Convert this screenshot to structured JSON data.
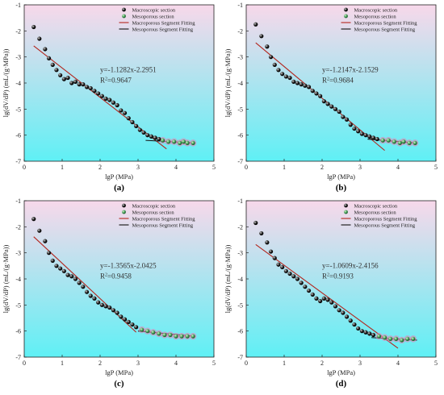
{
  "legend": {
    "macroscopic_label": "Macroscopic section",
    "mesoporous_label": "Mesoporous section",
    "macro_fit_label": "Macroporous Segment Fitting",
    "meso_fit_label": "Mesoporous Segment Fitting"
  },
  "colors": {
    "macro_fit_line": "#b3261e",
    "meso_fit_line": "#111111",
    "macro_point": "#1a1a1a",
    "meso_point": "#3f9a56",
    "halo": "#f07ab4",
    "bg_top": "#f8d8ea",
    "bg_bottom": "#5ff0f5"
  },
  "chart_data": [
    {
      "type": "scatter",
      "panel_label": "(a)",
      "xlabel": "lgP (MPa)",
      "ylabel": "lg(dV/dP) (mL/(g·MPa))",
      "xlim": [
        0,
        5
      ],
      "ylim": [
        -7,
        -1
      ],
      "xticks": [
        0,
        1,
        2,
        3,
        4,
        5
      ],
      "yticks": [
        -7,
        -6,
        -5,
        -4,
        -3,
        -2,
        -1
      ],
      "fit_equation": "y=-1.1282x-2.2951",
      "r2_value": "=0.9647",
      "macro_fit": {
        "slope": -1.1282,
        "intercept": -2.2951,
        "x_range": [
          0.25,
          3.75
        ]
      },
      "meso_fit": {
        "x_range": [
          3.2,
          4.5
        ],
        "y_range": [
          -6.2,
          -6.3
        ]
      },
      "macro_points": [
        [
          0.25,
          -1.85
        ],
        [
          0.4,
          -2.3
        ],
        [
          0.55,
          -2.7
        ],
        [
          0.65,
          -3.05
        ],
        [
          0.75,
          -3.3
        ],
        [
          0.85,
          -3.5
        ],
        [
          0.95,
          -3.7
        ],
        [
          1.05,
          -3.85
        ],
        [
          1.15,
          -3.8
        ],
        [
          1.25,
          -4.0
        ],
        [
          1.35,
          -3.95
        ],
        [
          1.45,
          -4.05
        ],
        [
          1.55,
          -4.05
        ],
        [
          1.65,
          -4.15
        ],
        [
          1.75,
          -4.2
        ],
        [
          1.85,
          -4.3
        ],
        [
          1.95,
          -4.4
        ],
        [
          2.05,
          -4.5
        ],
        [
          2.15,
          -4.6
        ],
        [
          2.25,
          -4.65
        ],
        [
          2.35,
          -4.75
        ],
        [
          2.45,
          -4.85
        ],
        [
          2.55,
          -5.05
        ],
        [
          2.65,
          -5.15
        ],
        [
          2.75,
          -5.35
        ],
        [
          2.85,
          -5.5
        ],
        [
          2.95,
          -5.65
        ],
        [
          3.05,
          -5.8
        ],
        [
          3.15,
          -5.9
        ],
        [
          3.25,
          -6.0
        ],
        [
          3.35,
          -6.05
        ],
        [
          3.45,
          -6.1
        ],
        [
          3.55,
          -6.15
        ]
      ],
      "meso_points": [
        [
          3.65,
          -6.2
        ],
        [
          3.8,
          -6.25
        ],
        [
          3.95,
          -6.25
        ],
        [
          4.1,
          -6.3
        ],
        [
          4.2,
          -6.25
        ],
        [
          4.3,
          -6.3
        ],
        [
          4.45,
          -6.3
        ]
      ]
    },
    {
      "type": "scatter",
      "panel_label": "(b)",
      "xlabel": "lgP (MPa)",
      "ylabel": "lg(dV/dP) (mL/(g·MPa))",
      "xlim": [
        0,
        5
      ],
      "ylim": [
        -7,
        -1
      ],
      "xticks": [
        0,
        1,
        2,
        3,
        4,
        5
      ],
      "yticks": [
        -7,
        -6,
        -5,
        -4,
        -3,
        -2,
        -1
      ],
      "fit_equation": "y=-1.2147x-2.1529",
      "r2_value": "=0.9684",
      "macro_fit": {
        "slope": -1.2147,
        "intercept": -2.1529,
        "x_range": [
          0.25,
          3.65
        ]
      },
      "meso_fit": {
        "x_range": [
          3.2,
          4.5
        ],
        "y_range": [
          -6.15,
          -6.3
        ]
      },
      "macro_points": [
        [
          0.25,
          -1.75
        ],
        [
          0.4,
          -2.2
        ],
        [
          0.55,
          -2.6
        ],
        [
          0.65,
          -3.0
        ],
        [
          0.75,
          -3.3
        ],
        [
          0.85,
          -3.5
        ],
        [
          0.95,
          -3.65
        ],
        [
          1.05,
          -3.75
        ],
        [
          1.15,
          -3.8
        ],
        [
          1.25,
          -3.95
        ],
        [
          1.35,
          -4.0
        ],
        [
          1.45,
          -4.05
        ],
        [
          1.55,
          -4.1
        ],
        [
          1.65,
          -4.15
        ],
        [
          1.75,
          -4.3
        ],
        [
          1.85,
          -4.4
        ],
        [
          1.95,
          -4.5
        ],
        [
          2.05,
          -4.7
        ],
        [
          2.15,
          -4.8
        ],
        [
          2.25,
          -4.9
        ],
        [
          2.35,
          -5.0
        ],
        [
          2.45,
          -5.1
        ],
        [
          2.55,
          -5.3
        ],
        [
          2.65,
          -5.4
        ],
        [
          2.75,
          -5.6
        ],
        [
          2.85,
          -5.75
        ],
        [
          2.95,
          -5.85
        ],
        [
          3.05,
          -5.95
        ],
        [
          3.15,
          -6.0
        ],
        [
          3.25,
          -6.05
        ],
        [
          3.35,
          -6.1
        ],
        [
          3.45,
          -6.15
        ]
      ],
      "meso_points": [
        [
          3.6,
          -6.2
        ],
        [
          3.75,
          -6.2
        ],
        [
          3.9,
          -6.25
        ],
        [
          4.05,
          -6.3
        ],
        [
          4.15,
          -6.25
        ],
        [
          4.3,
          -6.3
        ],
        [
          4.45,
          -6.3
        ]
      ]
    },
    {
      "type": "scatter",
      "panel_label": "(c)",
      "xlabel": "lgP (MPa)",
      "ylabel": "lg(dV/dP) (mL/(g·MPa))",
      "xlim": [
        0,
        5
      ],
      "ylim": [
        -7,
        -1
      ],
      "xticks": [
        0,
        1,
        2,
        3,
        4,
        5
      ],
      "yticks": [
        -7,
        -6,
        -5,
        -4,
        -3,
        -2,
        -1
      ],
      "fit_equation": "y=-1.3565x-2.0425",
      "r2_value": "=0.9458",
      "macro_fit": {
        "slope": -1.3565,
        "intercept": -2.0425,
        "x_range": [
          0.25,
          2.95
        ]
      },
      "meso_fit": {
        "x_range": [
          3.0,
          4.5
        ],
        "y_range": [
          -6.0,
          -6.2
        ]
      },
      "macro_points": [
        [
          0.25,
          -1.7
        ],
        [
          0.4,
          -2.15
        ],
        [
          0.55,
          -2.55
        ],
        [
          0.65,
          -3.0
        ],
        [
          0.75,
          -3.3
        ],
        [
          0.85,
          -3.5
        ],
        [
          0.95,
          -3.6
        ],
        [
          1.05,
          -3.7
        ],
        [
          1.15,
          -3.85
        ],
        [
          1.25,
          -3.9
        ],
        [
          1.35,
          -4.0
        ],
        [
          1.45,
          -4.15
        ],
        [
          1.55,
          -4.3
        ],
        [
          1.65,
          -4.5
        ],
        [
          1.75,
          -4.65
        ],
        [
          1.85,
          -4.75
        ],
        [
          1.95,
          -4.9
        ],
        [
          2.05,
          -5.0
        ],
        [
          2.15,
          -5.05
        ],
        [
          2.25,
          -5.1
        ],
        [
          2.35,
          -5.2
        ],
        [
          2.45,
          -5.3
        ],
        [
          2.55,
          -5.45
        ],
        [
          2.65,
          -5.55
        ],
        [
          2.75,
          -5.65
        ],
        [
          2.85,
          -5.75
        ],
        [
          2.95,
          -5.85
        ]
      ],
      "meso_points": [
        [
          3.1,
          -5.95
        ],
        [
          3.25,
          -6.0
        ],
        [
          3.4,
          -6.05
        ],
        [
          3.55,
          -6.1
        ],
        [
          3.7,
          -6.15
        ],
        [
          3.85,
          -6.15
        ],
        [
          4.0,
          -6.2
        ],
        [
          4.15,
          -6.2
        ],
        [
          4.3,
          -6.2
        ],
        [
          4.45,
          -6.2
        ]
      ]
    },
    {
      "type": "scatter",
      "panel_label": "(d)",
      "xlabel": "lgP (MPa)",
      "ylabel": "lg(dV/dP) (mL/(g·MPa))",
      "xlim": [
        0,
        5
      ],
      "ylim": [
        -7,
        -1
      ],
      "xticks": [
        0,
        1,
        2,
        3,
        4,
        5
      ],
      "yticks": [
        -7,
        -6,
        -5,
        -4,
        -3,
        -2,
        -1
      ],
      "fit_equation": "y=-1.0609x-2.4156",
      "r2_value": "=0.9193",
      "macro_fit": {
        "slope": -1.0609,
        "intercept": -2.4156,
        "x_range": [
          0.25,
          4.0
        ]
      },
      "meso_fit": {
        "x_range": [
          3.3,
          4.5
        ],
        "y_range": [
          -6.25,
          -6.35
        ]
      },
      "macro_points": [
        [
          0.25,
          -1.85
        ],
        [
          0.4,
          -2.25
        ],
        [
          0.55,
          -2.6
        ],
        [
          0.65,
          -2.95
        ],
        [
          0.75,
          -3.2
        ],
        [
          0.85,
          -3.45
        ],
        [
          0.95,
          -3.55
        ],
        [
          1.05,
          -3.7
        ],
        [
          1.15,
          -3.8
        ],
        [
          1.25,
          -3.9
        ],
        [
          1.35,
          -4.0
        ],
        [
          1.45,
          -4.15
        ],
        [
          1.55,
          -4.3
        ],
        [
          1.65,
          -4.45
        ],
        [
          1.75,
          -4.6
        ],
        [
          1.85,
          -4.75
        ],
        [
          1.95,
          -4.85
        ],
        [
          2.05,
          -4.75
        ],
        [
          2.15,
          -4.8
        ],
        [
          2.25,
          -4.9
        ],
        [
          2.35,
          -5.05
        ],
        [
          2.45,
          -5.2
        ],
        [
          2.55,
          -5.3
        ],
        [
          2.65,
          -5.45
        ],
        [
          2.75,
          -5.6
        ],
        [
          2.85,
          -5.75
        ],
        [
          2.95,
          -5.9
        ],
        [
          3.05,
          -6.0
        ],
        [
          3.15,
          -6.05
        ],
        [
          3.25,
          -6.1
        ],
        [
          3.35,
          -6.15
        ]
      ],
      "meso_points": [
        [
          3.5,
          -6.2
        ],
        [
          3.65,
          -6.25
        ],
        [
          3.8,
          -6.3
        ],
        [
          3.95,
          -6.3
        ],
        [
          4.1,
          -6.35
        ],
        [
          4.25,
          -6.3
        ],
        [
          4.4,
          -6.3
        ]
      ]
    }
  ]
}
